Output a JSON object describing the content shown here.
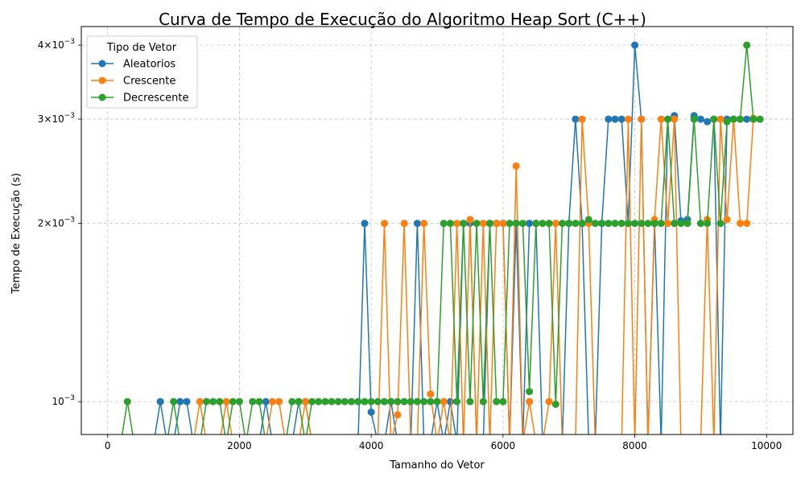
{
  "chart_data": {
    "type": "line",
    "title": "Curva de Tempo de Execução do Algoritmo Heap Sort (C++)",
    "xlabel": "Tamanho do Vetor",
    "ylabel": "Tempo de Execução (s)",
    "yscale": "log",
    "xlim": [
      -400,
      10400
    ],
    "ylim": [
      0.00088,
      0.0043
    ],
    "grid": true,
    "legend": {
      "title": "Tipo de Vetor",
      "placement": "top-left"
    },
    "x_ticks": [
      {
        "value": 0,
        "label": "0"
      },
      {
        "value": 2000,
        "label": "2000"
      },
      {
        "value": 4000,
        "label": "4000"
      },
      {
        "value": 6000,
        "label": "6000"
      },
      {
        "value": 8000,
        "label": "8000"
      },
      {
        "value": 10000,
        "label": "10000"
      }
    ],
    "y_ticks": [
      {
        "value": 0.001,
        "mantissa": "10",
        "exponent": "−3"
      },
      {
        "value": 0.002,
        "mantissa": "2×10",
        "exponent": "−3"
      },
      {
        "value": 0.003,
        "mantissa": "3×10",
        "exponent": "−3"
      },
      {
        "value": 0.004,
        "mantissa": "4×10",
        "exponent": "−3"
      }
    ],
    "series": [
      {
        "name": "Aleatorios",
        "color": "#1f77b4",
        "x": [
          800,
          1100,
          1200,
          2400,
          2900,
          3000,
          3900,
          4000,
          4300,
          4700,
          5000,
          5200,
          5400,
          5500,
          5800,
          5900,
          6000,
          6200,
          6400,
          6500,
          7000,
          7100,
          7200,
          7500,
          7600,
          7700,
          7800,
          7900,
          8000,
          8100,
          8300,
          8500,
          8600,
          8700,
          8800,
          8900,
          9000,
          9100,
          9200,
          9400,
          9500,
          9600,
          9700,
          9800,
          9900
        ],
        "y": [
          0.001,
          0.001,
          0.001,
          0.001,
          0.001,
          0.001,
          0.002,
          0.00096,
          0.001,
          0.002,
          0.001,
          0.001,
          0.002,
          0.002,
          0.002,
          0.002,
          0.002,
          0.002,
          0.002,
          0.002,
          0.002,
          0.003,
          0.002,
          0.002,
          0.003,
          0.003,
          0.003,
          0.002,
          0.004,
          0.003,
          0.002,
          0.003,
          0.00304,
          0.00202,
          0.00203,
          0.00304,
          0.003,
          0.00297,
          0.003,
          0.003,
          0.003,
          0.003,
          0.003,
          0.003,
          0.003
        ]
      },
      {
        "name": "Crescente",
        "color": "#ff7f0e",
        "x": [
          1400,
          1800,
          2500,
          2600,
          3000,
          4200,
          4400,
          4500,
          4800,
          4900,
          5100,
          5300,
          5500,
          5700,
          5900,
          6000,
          6200,
          6400,
          6700,
          6800,
          7200,
          7300,
          7900,
          8100,
          8300,
          8400,
          8500,
          8600,
          9100,
          9300,
          9400,
          9500,
          9600,
          9700,
          9800
        ],
        "y": [
          0.001,
          0.001,
          0.001,
          0.001,
          0.001,
          0.002,
          0.00095,
          0.002,
          0.002,
          0.00103,
          0.001,
          0.002,
          0.00203,
          0.002,
          0.002,
          0.002,
          0.0025,
          0.001,
          0.001,
          0.002,
          0.003,
          0.002,
          0.003,
          0.003,
          0.00203,
          0.003,
          0.002,
          0.003,
          0.00203,
          0.003,
          0.00203,
          0.003,
          0.002,
          0.002,
          0.00301
        ]
      },
      {
        "name": "Decrescente",
        "color": "#2ca02c",
        "x": [
          300,
          1000,
          1500,
          1600,
          1700,
          1900,
          2000,
          2200,
          2300,
          2800,
          2900,
          3100,
          3200,
          3300,
          3400,
          3500,
          3600,
          3700,
          3800,
          3900,
          4000,
          4100,
          4200,
          4300,
          4400,
          4500,
          4600,
          4700,
          4800,
          4900,
          5000,
          5100,
          5200,
          5300,
          5400,
          5500,
          5600,
          5700,
          5800,
          5900,
          6000,
          6100,
          6200,
          6300,
          6400,
          6500,
          6600,
          6700,
          6800,
          6900,
          7000,
          7100,
          7200,
          7300,
          7400,
          7500,
          7600,
          7700,
          7800,
          7900,
          8000,
          8100,
          8200,
          8300,
          8400,
          8500,
          8600,
          8700,
          8800,
          8900,
          9000,
          9100,
          9200,
          9300,
          9400,
          9500,
          9600,
          9700,
          9800,
          9900
        ],
        "y": [
          0.001,
          0.001,
          0.001,
          0.001,
          0.001,
          0.001,
          0.001,
          0.001,
          0.001,
          0.001,
          0.001,
          0.001,
          0.001,
          0.001,
          0.001,
          0.001,
          0.001,
          0.001,
          0.001,
          0.001,
          0.001,
          0.001,
          0.001,
          0.001,
          0.001,
          0.001,
          0.001,
          0.001,
          0.001,
          0.001,
          0.001,
          0.002,
          0.002,
          0.001,
          0.002,
          0.001,
          0.002,
          0.001,
          0.002,
          0.001,
          0.001,
          0.002,
          0.002,
          0.002,
          0.00104,
          0.002,
          0.002,
          0.002,
          0.00099,
          0.002,
          0.002,
          0.002,
          0.002,
          0.00203,
          0.002,
          0.002,
          0.002,
          0.002,
          0.002,
          0.002,
          0.002,
          0.002,
          0.002,
          0.002,
          0.002,
          0.003,
          0.002,
          0.002,
          0.002,
          0.003,
          0.002,
          0.002,
          0.003,
          0.002,
          0.00297,
          0.003,
          0.003,
          0.004,
          0.003,
          0.003
        ]
      }
    ]
  }
}
